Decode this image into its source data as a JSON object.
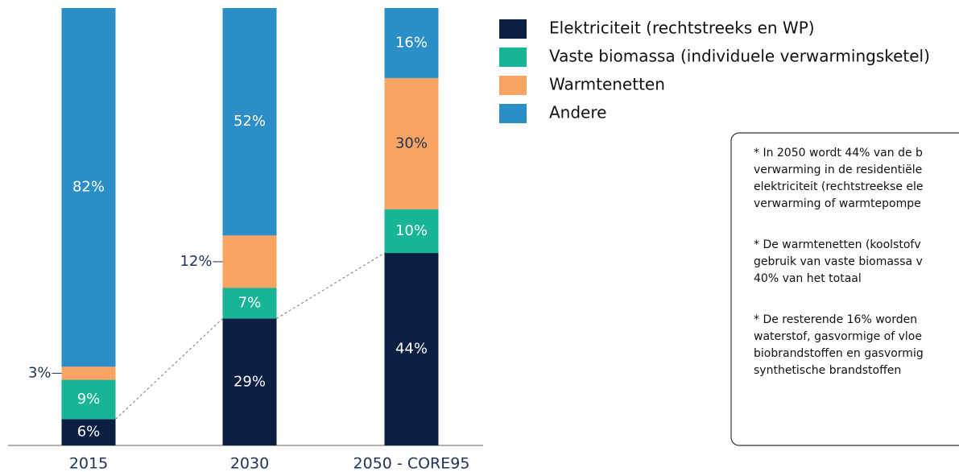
{
  "chart_data": {
    "type": "stacked_bar",
    "categories": [
      "2015",
      "2030",
      "2050 - CORE95"
    ],
    "ylim": [
      0,
      100
    ],
    "series": [
      {
        "name": "Elektriciteit (rechtstreeks en WP)",
        "color": "#0b1f43",
        "label_color": "#ffffff",
        "values": [
          6,
          29,
          44
        ],
        "value_labels": [
          "6%",
          "29%",
          "44%"
        ]
      },
      {
        "name": "Vaste biomassa (individuele verwarmingsketel)",
        "color": "#17b495",
        "label_color": "#ffffff",
        "values": [
          9,
          7,
          10
        ],
        "value_labels": [
          "9%",
          "7%",
          "10%"
        ]
      },
      {
        "name": "Warmtenetten",
        "color": "#f9a463",
        "label_color": "#1f3355",
        "values": [
          3,
          12,
          30
        ],
        "value_labels": [
          "3%",
          "12%",
          "30%"
        ]
      },
      {
        "name": "Andere",
        "color": "#2b8ec6",
        "label_color": "#ffffff",
        "values": [
          82,
          52,
          16
        ],
        "value_labels": [
          "82%",
          "52%",
          "16%"
        ]
      }
    ],
    "notes": [
      [
        "* In 2050 wordt 44% van de b",
        "verwarming in de residentiële",
        "elektriciteit (rechtstreekse ele",
        "verwarming of warmtepompe"
      ],
      [
        "* De warmtenetten (koolstofv",
        "gebruik van vaste biomassa v",
        "40% van het totaal"
      ],
      [
        "* De resterende 16% worden",
        "waterstof, gasvormige of vloe",
        "biobrandstoffen en gasvormig",
        "synthetische brandstoffen"
      ]
    ]
  }
}
